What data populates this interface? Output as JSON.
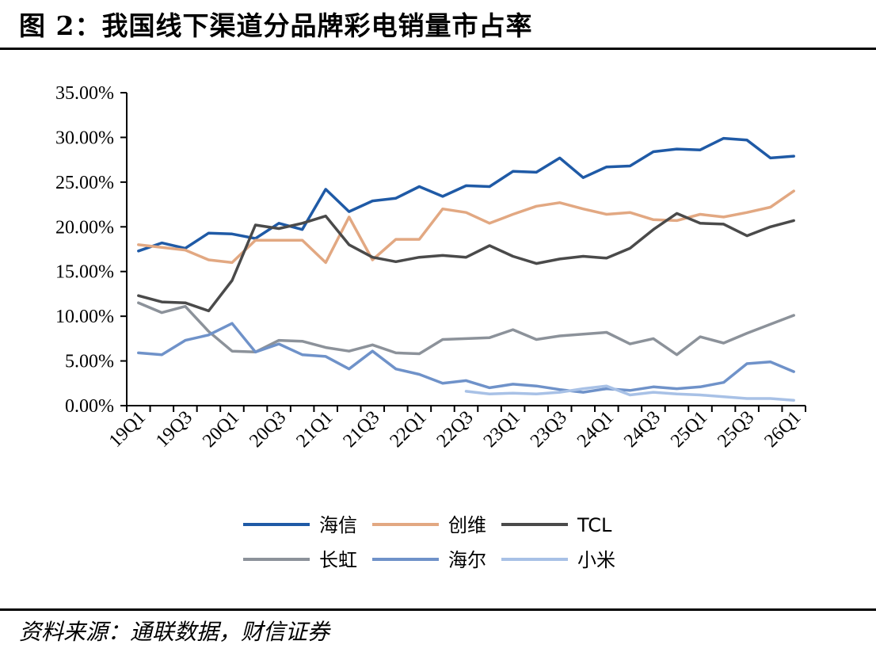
{
  "header": {
    "title": "图 2：我国线下渠道分品牌彩电销量市占率"
  },
  "footer": {
    "source": "资料来源：通联数据，财信证券"
  },
  "chart_data": {
    "type": "line",
    "title": "",
    "xlabel": "",
    "ylabel": "",
    "ylim": [
      0,
      35
    ],
    "y_ticks": [
      "0.00%",
      "5.00%",
      "10.00%",
      "15.00%",
      "20.00%",
      "25.00%",
      "30.00%",
      "35.00%"
    ],
    "y_tick_values": [
      0,
      5,
      10,
      15,
      20,
      25,
      30,
      35
    ],
    "x": [
      "19Q1",
      "19Q2",
      "19Q3",
      "19Q4",
      "20Q1",
      "20Q2",
      "20Q3",
      "20Q4",
      "21Q1",
      "21Q2",
      "21Q3",
      "21Q4",
      "22Q1",
      "22Q2",
      "22Q3",
      "22Q4",
      "23Q1",
      "23Q2",
      "23Q3",
      "23Q4",
      "24Q1",
      "24Q2",
      "24Q3",
      "24Q4",
      "25Q1",
      "25Q2",
      "25Q3",
      "25Q4",
      "26Q1"
    ],
    "x_tick_labels": [
      "19Q1",
      "19Q3",
      "20Q1",
      "20Q3",
      "21Q1",
      "21Q3",
      "22Q1",
      "22Q3",
      "23Q1",
      "23Q3",
      "24Q1",
      "24Q3",
      "25Q1",
      "25Q3",
      "26Q1"
    ],
    "legend_position": "bottom",
    "series": [
      {
        "name": "海信",
        "color": "#1f5aa6",
        "values": [
          17.3,
          18.2,
          17.6,
          19.3,
          19.2,
          18.7,
          20.4,
          19.7,
          24.2,
          21.7,
          22.9,
          23.2,
          24.5,
          23.4,
          24.6,
          24.5,
          26.2,
          26.1,
          27.7,
          25.5,
          26.7,
          26.8,
          28.4,
          28.7,
          28.6,
          29.9,
          29.7,
          27.7,
          27.9
        ]
      },
      {
        "name": "创维",
        "color": "#e2a882",
        "values": [
          18.0,
          17.7,
          17.4,
          16.3,
          16.0,
          18.5,
          18.5,
          18.5,
          16.0,
          21.1,
          16.3,
          18.6,
          18.6,
          22.0,
          21.6,
          20.4,
          21.4,
          22.3,
          22.7,
          22.0,
          21.4,
          21.6,
          20.8,
          20.7,
          21.4,
          21.1,
          21.6,
          22.2,
          24.0
        ]
      },
      {
        "name": "TCL",
        "color": "#4a4a4a",
        "values": [
          12.3,
          11.6,
          11.5,
          10.6,
          14.0,
          20.2,
          19.8,
          20.4,
          21.2,
          18.0,
          16.6,
          16.1,
          16.6,
          16.8,
          16.6,
          17.9,
          16.7,
          15.9,
          16.4,
          16.7,
          16.5,
          17.6,
          19.7,
          21.5,
          20.4,
          20.3,
          19.0,
          20.0,
          20.7
        ]
      },
      {
        "name": "长虹",
        "color": "#8c929a",
        "values": [
          11.5,
          10.4,
          11.1,
          8.3,
          6.1,
          6.0,
          7.3,
          7.2,
          6.5,
          6.1,
          6.8,
          5.9,
          5.8,
          7.4,
          7.5,
          7.6,
          8.5,
          7.4,
          7.8,
          8.0,
          8.2,
          6.9,
          7.5,
          5.7,
          7.7,
          7.0,
          8.1,
          9.1,
          10.1
        ]
      },
      {
        "name": "海尔",
        "color": "#6f92c9",
        "values": [
          5.9,
          5.7,
          7.3,
          7.9,
          9.2,
          6.0,
          6.9,
          5.7,
          5.5,
          4.1,
          6.1,
          4.1,
          3.5,
          2.5,
          2.8,
          2.0,
          2.4,
          2.2,
          1.8,
          1.5,
          1.9,
          1.7,
          2.1,
          1.9,
          2.1,
          2.6,
          4.7,
          4.9,
          3.8
        ]
      },
      {
        "name": "小米",
        "color": "#a8c1e6",
        "values": [
          null,
          null,
          null,
          null,
          null,
          null,
          null,
          null,
          null,
          null,
          null,
          null,
          null,
          null,
          1.6,
          1.3,
          1.4,
          1.3,
          1.5,
          1.9,
          2.2,
          1.2,
          1.5,
          1.3,
          1.2,
          1.0,
          0.8,
          0.8,
          0.6
        ]
      }
    ]
  }
}
